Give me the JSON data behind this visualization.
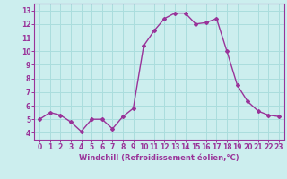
{
  "x": [
    0,
    1,
    2,
    3,
    4,
    5,
    6,
    7,
    8,
    9,
    10,
    11,
    12,
    13,
    14,
    15,
    16,
    17,
    18,
    19,
    20,
    21,
    22,
    23
  ],
  "y": [
    5.0,
    5.5,
    5.3,
    4.8,
    4.1,
    5.0,
    5.0,
    4.3,
    5.2,
    5.8,
    10.4,
    11.5,
    12.4,
    12.8,
    12.8,
    12.0,
    12.1,
    12.4,
    10.0,
    7.5,
    6.3,
    5.6,
    5.3,
    5.2
  ],
  "line_color": "#993399",
  "marker": "D",
  "marker_size": 2,
  "xlabel": "Windchill (Refroidissement éolien,°C)",
  "xlabel_fontsize": 6,
  "ylim": [
    3.5,
    13.5
  ],
  "xlim": [
    -0.5,
    23.5
  ],
  "yticks": [
    4,
    5,
    6,
    7,
    8,
    9,
    10,
    11,
    12,
    13
  ],
  "xticks": [
    0,
    1,
    2,
    3,
    4,
    5,
    6,
    7,
    8,
    9,
    10,
    11,
    12,
    13,
    14,
    15,
    16,
    17,
    18,
    19,
    20,
    21,
    22,
    23
  ],
  "grid_color": "#aadddd",
  "bg_color": "#cceeee",
  "tick_fontsize": 5.5,
  "line_width": 1.0
}
